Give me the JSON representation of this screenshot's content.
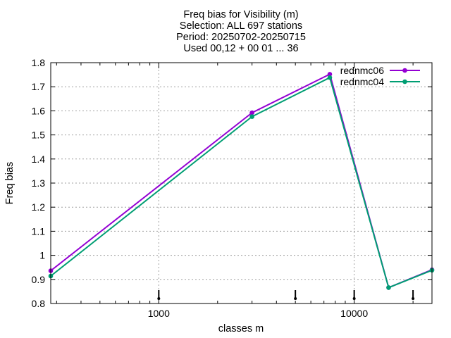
{
  "chart_data": {
    "type": "line",
    "title_lines": [
      "Freq bias  for Visibility (m)",
      "Selection: ALL    697 stations",
      "Period: 20250702-20250715",
      "Used 00,12 + 00 01 ... 36"
    ],
    "xlabel": "classes m",
    "ylabel": "Freq bias",
    "x_scale": "log",
    "xlim": [
      280,
      25000
    ],
    "ylim": [
      0.8,
      1.8
    ],
    "x_ticks": [
      {
        "value": 1000,
        "label": "1000"
      },
      {
        "value": 10000,
        "label": "10000"
      }
    ],
    "y_ticks": [
      {
        "value": 0.8,
        "label": "0.8"
      },
      {
        "value": 0.9,
        "label": "0.9"
      },
      {
        "value": 1.0,
        "label": "1"
      },
      {
        "value": 1.1,
        "label": "1.1"
      },
      {
        "value": 1.2,
        "label": "1.2"
      },
      {
        "value": 1.3,
        "label": "1.3"
      },
      {
        "value": 1.4,
        "label": "1.4"
      },
      {
        "value": 1.5,
        "label": "1.5"
      },
      {
        "value": 1.6,
        "label": "1.6"
      },
      {
        "value": 1.7,
        "label": "1.7"
      },
      {
        "value": 1.8,
        "label": "1.8"
      }
    ],
    "grid": true,
    "legend_position": "top-right",
    "series": [
      {
        "name": "rednmc06",
        "color": "#9400d3",
        "x": [
          280,
          3000,
          7500,
          15000,
          25000
        ],
        "y": [
          0.936,
          1.592,
          1.752,
          0.866,
          0.94
        ]
      },
      {
        "name": "rednmc04",
        "color": "#009e73",
        "x": [
          280,
          3000,
          7500,
          15000,
          25000
        ],
        "y": [
          0.914,
          1.576,
          1.738,
          0.866,
          0.938
        ]
      }
    ],
    "class_markers": [
      1000,
      5000,
      10000,
      20000
    ]
  }
}
